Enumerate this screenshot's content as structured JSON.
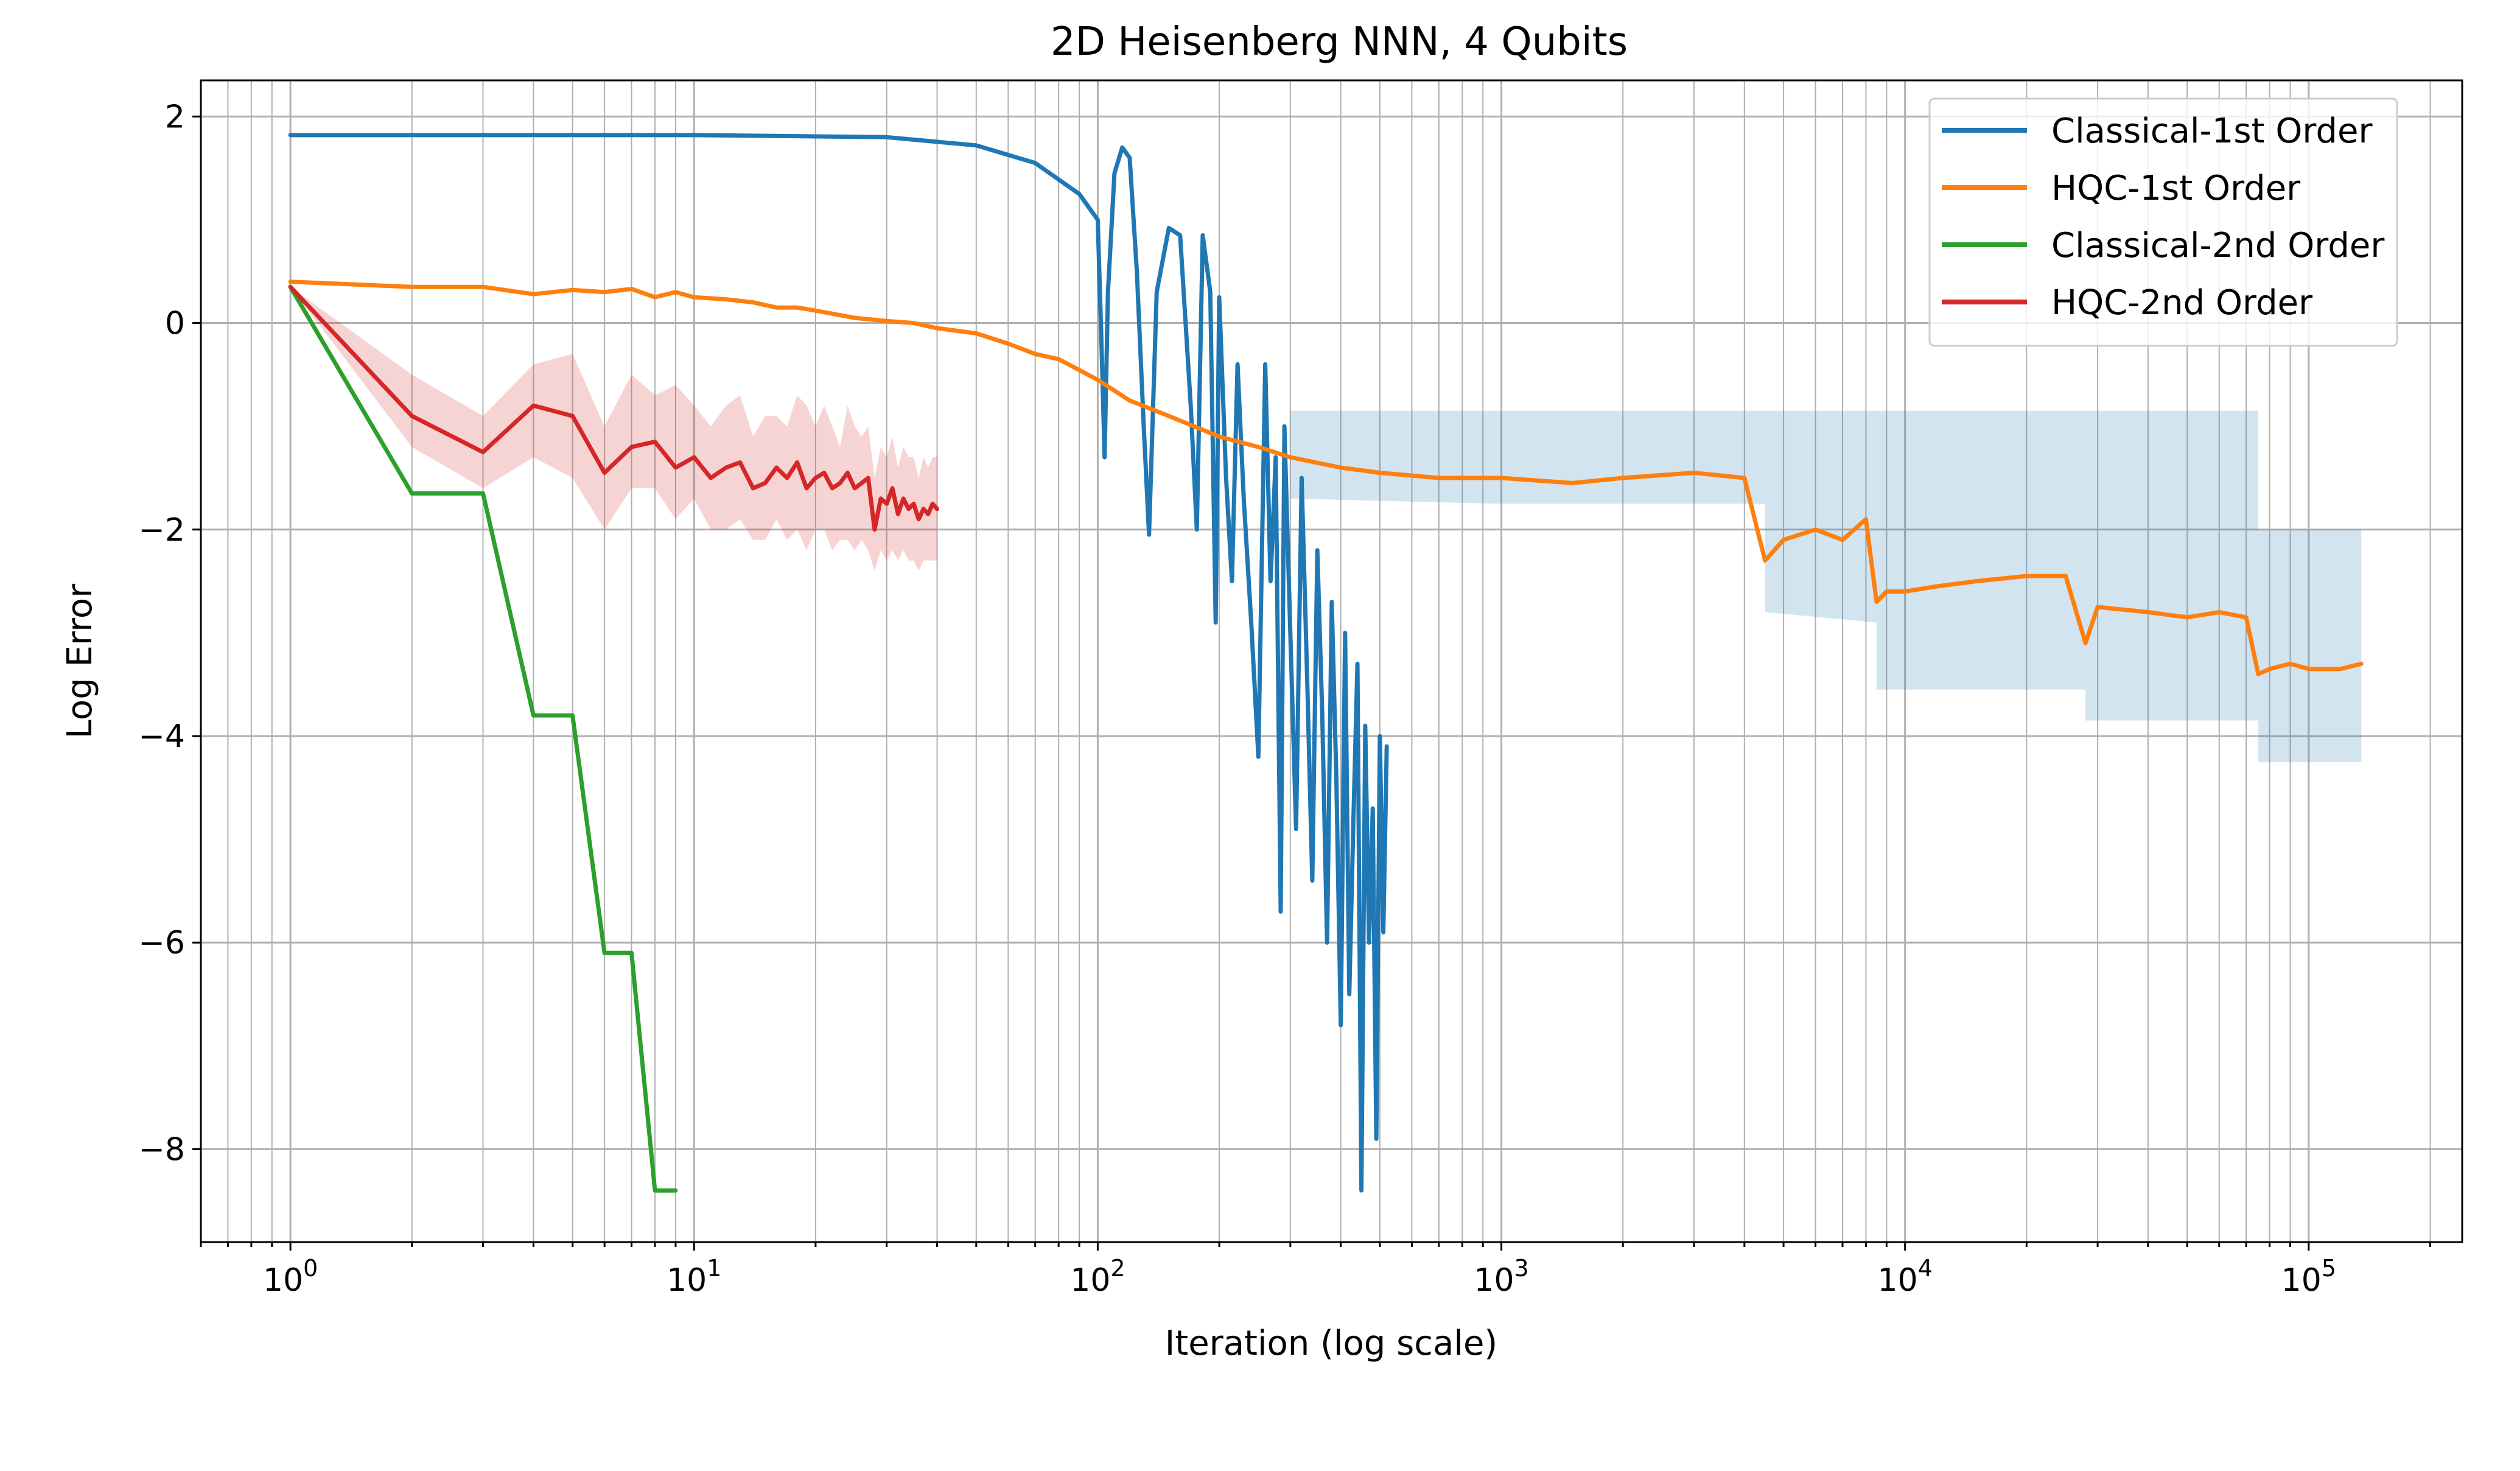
{
  "chart_data": {
    "type": "line",
    "title": "2D Heisenberg NNN, 4 Qubits",
    "xlabel": "Iteration (log scale)",
    "ylabel": "Log Error",
    "xscale": "log",
    "xlim": [
      0.6,
      240000
    ],
    "ylim": [
      -8.9,
      2.35
    ],
    "x_tick_labels": [
      {
        "value": 1,
        "base": "10",
        "exp": "0"
      },
      {
        "value": 10,
        "base": "10",
        "exp": "1"
      },
      {
        "value": 100,
        "base": "10",
        "exp": "2"
      },
      {
        "value": 1000,
        "base": "10",
        "exp": "3"
      },
      {
        "value": 10000,
        "base": "10",
        "exp": "4"
      },
      {
        "value": 100000,
        "base": "10",
        "exp": "5"
      }
    ],
    "y_ticks": [
      {
        "value": 2,
        "label": "2"
      },
      {
        "value": 0,
        "label": "0"
      },
      {
        "value": -2,
        "label": "−2"
      },
      {
        "value": -4,
        "label": "−4"
      },
      {
        "value": -6,
        "label": "−6"
      },
      {
        "value": -8,
        "label": "−8"
      }
    ],
    "grid": true,
    "legend_position": "top-right",
    "series": [
      {
        "name": "Classical-1st Order",
        "color": "#1f77b4",
        "x": [
          1,
          10,
          30,
          50,
          70,
          90,
          100,
          102,
          104,
          106,
          110,
          115,
          120,
          125,
          130,
          134,
          140,
          150,
          160,
          170,
          176,
          182,
          190,
          196,
          200,
          208,
          215,
          222,
          230,
          240,
          250,
          260,
          268,
          276,
          284,
          290,
          300,
          310,
          320,
          330,
          340,
          350,
          360,
          370,
          380,
          390,
          400,
          410,
          420,
          430,
          440,
          450,
          460,
          470,
          480,
          490,
          500,
          510,
          520
        ],
        "y": [
          1.82,
          1.82,
          1.8,
          1.72,
          1.55,
          1.25,
          1.0,
          -0.1,
          -1.3,
          0.3,
          1.45,
          1.7,
          1.6,
          0.5,
          -1.0,
          -2.05,
          0.3,
          0.92,
          0.85,
          -0.8,
          -2.0,
          0.85,
          0.3,
          -2.9,
          0.25,
          -1.5,
          -2.5,
          -0.4,
          -1.7,
          -2.9,
          -4.2,
          -0.4,
          -2.5,
          -1.3,
          -5.7,
          -1.0,
          -3.0,
          -4.9,
          -1.5,
          -3.4,
          -5.4,
          -2.2,
          -3.8,
          -6.0,
          -2.7,
          -4.4,
          -6.8,
          -3.0,
          -6.5,
          -4.8,
          -3.3,
          -8.4,
          -3.9,
          -6.0,
          -4.7,
          -7.9,
          -4.0,
          -5.9,
          -4.1
        ]
      },
      {
        "name": "HQC-1st Order",
        "color": "#ff7f0e",
        "x": [
          1,
          2,
          3,
          4,
          5,
          6,
          7,
          8,
          9,
          10,
          12,
          14,
          16,
          18,
          20,
          25,
          30,
          35,
          40,
          50,
          60,
          70,
          80,
          100,
          120,
          150,
          200,
          250,
          300,
          400,
          500,
          700,
          1000,
          1500,
          2000,
          3000,
          4000,
          4500,
          5000,
          6000,
          7000,
          8000,
          8500,
          9000,
          10000,
          12000,
          15000,
          20000,
          25000,
          28000,
          30000,
          40000,
          50000,
          60000,
          70000,
          75000,
          80000,
          90000,
          100000,
          120000,
          135000
        ],
        "y": [
          0.4,
          0.35,
          0.35,
          0.28,
          0.32,
          0.3,
          0.33,
          0.25,
          0.3,
          0.25,
          0.23,
          0.2,
          0.15,
          0.15,
          0.12,
          0.05,
          0.02,
          0.0,
          -0.05,
          -0.1,
          -0.2,
          -0.3,
          -0.35,
          -0.55,
          -0.75,
          -0.9,
          -1.1,
          -1.2,
          -1.3,
          -1.4,
          -1.45,
          -1.5,
          -1.5,
          -1.55,
          -1.5,
          -1.45,
          -1.5,
          -2.3,
          -2.1,
          -2.0,
          -2.1,
          -1.9,
          -2.7,
          -2.6,
          -2.6,
          -2.55,
          -2.5,
          -2.45,
          -2.45,
          -3.1,
          -2.75,
          -2.8,
          -2.85,
          -2.8,
          -2.85,
          -3.4,
          -3.35,
          -3.3,
          -3.35,
          -3.35,
          -3.3
        ]
      },
      {
        "name": "Classical-2nd Order",
        "color": "#2ca02c",
        "x": [
          1,
          2,
          3,
          4,
          5,
          6,
          7,
          8,
          9
        ],
        "y": [
          0.35,
          -1.65,
          -1.65,
          -3.8,
          -3.8,
          -6.1,
          -6.1,
          -8.4,
          -8.4
        ]
      },
      {
        "name": "HQC-2nd Order",
        "color": "#d62728",
        "x": [
          1,
          2,
          3,
          4,
          5,
          6,
          7,
          8,
          9,
          10,
          11,
          12,
          13,
          14,
          15,
          16,
          17,
          18,
          19,
          20,
          21,
          22,
          23,
          24,
          25,
          26,
          27,
          28,
          29,
          30,
          31,
          32,
          33,
          34,
          35,
          36,
          37,
          38,
          39,
          40
        ],
        "y": [
          0.35,
          -0.9,
          -1.25,
          -0.8,
          -0.9,
          -1.45,
          -1.2,
          -1.15,
          -1.4,
          -1.3,
          -1.5,
          -1.4,
          -1.35,
          -1.6,
          -1.55,
          -1.4,
          -1.5,
          -1.35,
          -1.6,
          -1.5,
          -1.45,
          -1.6,
          -1.55,
          -1.45,
          -1.6,
          -1.55,
          -1.5,
          -2.0,
          -1.7,
          -1.75,
          -1.6,
          -1.85,
          -1.7,
          -1.8,
          -1.75,
          -1.9,
          -1.8,
          -1.85,
          -1.75,
          -1.8
        ],
        "band_low": [
          0.35,
          -1.2,
          -1.6,
          -1.3,
          -1.5,
          -2.0,
          -1.6,
          -1.6,
          -1.9,
          -1.7,
          -2.0,
          -2.0,
          -1.9,
          -2.1,
          -2.1,
          -1.9,
          -2.1,
          -2.0,
          -2.2,
          -2.0,
          -2.0,
          -2.2,
          -2.1,
          -2.1,
          -2.2,
          -2.1,
          -2.2,
          -2.4,
          -2.2,
          -2.3,
          -2.2,
          -2.3,
          -2.2,
          -2.3,
          -2.3,
          -2.4,
          -2.3,
          -2.3,
          -2.3,
          -2.3
        ],
        "band_high": [
          0.35,
          -0.5,
          -0.9,
          -0.4,
          -0.3,
          -1.0,
          -0.5,
          -0.7,
          -0.6,
          -0.8,
          -1.0,
          -0.8,
          -0.7,
          -1.1,
          -0.9,
          -0.9,
          -1.0,
          -0.7,
          -0.8,
          -1.0,
          -0.8,
          -1.0,
          -1.2,
          -0.8,
          -1.0,
          -1.1,
          -1.0,
          -1.5,
          -1.2,
          -1.3,
          -1.1,
          -1.4,
          -1.2,
          -1.3,
          -1.3,
          -1.5,
          -1.3,
          -1.4,
          -1.3,
          -1.3
        ]
      }
    ],
    "shaded_bands": [
      {
        "series": "HQC-1st Order",
        "color": "#1f77b4",
        "x": [
          300,
          1000,
          4500,
          4500,
          8500,
          8500,
          28000,
          28000,
          75000,
          75000,
          135000
        ],
        "low": [
          -1.7,
          -1.75,
          -1.75,
          -2.8,
          -2.9,
          -3.55,
          -3.55,
          -3.85,
          -3.85,
          -4.25,
          -4.25
        ],
        "high": [
          -0.85,
          -0.85,
          -0.85,
          -0.85,
          -0.85,
          -0.85,
          -0.85,
          -0.85,
          -0.85,
          -2.0,
          -2.0
        ]
      }
    ]
  }
}
